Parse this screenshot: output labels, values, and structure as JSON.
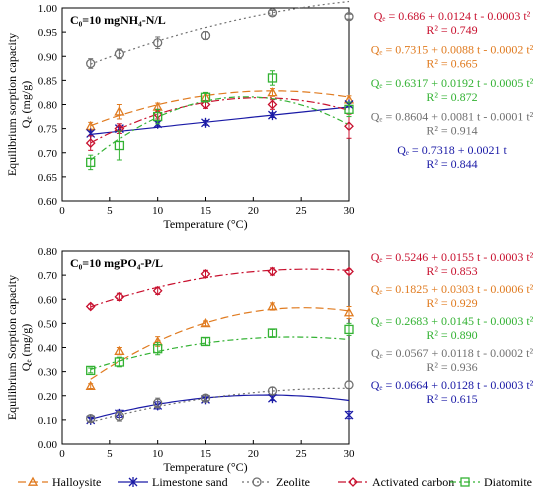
{
  "chart_data": [
    {
      "type": "line",
      "panel_label": "C₀=10 mgNH₄-N/L",
      "ylabel": "Equilibrium sorption capacity",
      "ylabel2": "Qₑ (mg/g)",
      "xlabel": "Temperature (°C)",
      "xlim": [
        0,
        30
      ],
      "ylim": [
        0.6,
        1.0
      ],
      "x_ticks": [
        "0",
        "5",
        "10",
        "15",
        "20",
        "25",
        "30"
      ],
      "y_ticks": [
        "0.60",
        "0.65",
        "0.70",
        "0.75",
        "0.80",
        "0.85",
        "0.90",
        "0.95",
        "1.00"
      ],
      "series": [
        {
          "key": "halloysite",
          "color": "#e07b20",
          "marker": "triangle",
          "dash": "8,4",
          "x": [
            3,
            6,
            10,
            15,
            22,
            30
          ],
          "values": [
            0.755,
            0.785,
            0.795,
            0.815,
            0.825,
            0.81
          ],
          "err": [
            0.008,
            0.015,
            0.008,
            0.01,
            0.008,
            0.008
          ],
          "fit": [
            0.7315,
            0.0088,
            -0.0002
          ]
        },
        {
          "key": "limestone",
          "color": "#1a1aa6",
          "marker": "star",
          "dash": "",
          "x": [
            3,
            6,
            10,
            15,
            22,
            30
          ],
          "values": [
            0.74,
            0.75,
            0.76,
            0.762,
            0.778,
            0.8
          ],
          "err": [
            0.005,
            0.005,
            0.005,
            0.005,
            0.005,
            0.005
          ],
          "fit": [
            0.7318,
            0.0021,
            0
          ]
        },
        {
          "key": "zeolite",
          "color": "#707070",
          "marker": "circle",
          "dash": "2,3",
          "x": [
            3,
            6,
            10,
            15,
            22,
            30
          ],
          "values": [
            0.885,
            0.905,
            0.928,
            0.943,
            0.99,
            0.982
          ],
          "err": [
            0.01,
            0.01,
            0.012,
            0.008,
            0.005,
            0.005
          ],
          "fit": [
            0.8604,
            0.0081,
            -0.0001
          ]
        },
        {
          "key": "activated",
          "color": "#c8102e",
          "marker": "diamond",
          "dash": "8,3,2,3",
          "x": [
            3,
            6,
            10,
            15,
            22,
            30
          ],
          "values": [
            0.72,
            0.75,
            0.78,
            0.8,
            0.8,
            0.755
          ],
          "err": [
            0.015,
            0.01,
            0.01,
            0.008,
            0.01,
            0.025
          ],
          "fit": [
            0.686,
            0.0124,
            -0.0003
          ]
        },
        {
          "key": "diatomite",
          "color": "#33b233",
          "marker": "square",
          "dash": "6,3,2,3",
          "x": [
            3,
            6,
            10,
            15,
            22,
            30
          ],
          "values": [
            0.68,
            0.715,
            0.775,
            0.815,
            0.855,
            0.79
          ],
          "err": [
            0.015,
            0.03,
            0.015,
            0.01,
            0.015,
            0.015
          ],
          "fit": [
            0.6317,
            0.0192,
            -0.0005
          ]
        }
      ],
      "equations": [
        {
          "color": "#c8102e",
          "line1": "Qₑ = 0.686 + 0.0124 t - 0.0003 t²",
          "line2": "R² = 0.749"
        },
        {
          "color": "#e07b20",
          "line1": "Qₑ = 0.7315 + 0.0088 t - 0.0002 t²",
          "line2": "R² = 0.665"
        },
        {
          "color": "#33b233",
          "line1": "Qₑ = 0.6317 + 0.0192 t - 0.0005 t²",
          "line2": "R² = 0.872"
        },
        {
          "color": "#707070",
          "line1": "Qₑ = 0.8604 + 0.0081 t - 0.0001 t²",
          "line2": "R² = 0.914"
        },
        {
          "color": "#1a1aa6",
          "line1": "Qₑ = 0.7318 + 0.0021 t",
          "line2": "R² = 0.844"
        }
      ]
    },
    {
      "type": "line",
      "panel_label": "C₀=10 mgPO₄-P/L",
      "ylabel": "Equilibrium Sorption capacity",
      "ylabel2": "Qₑ (mg/g)",
      "xlabel": "Temperature (°C)",
      "xlim": [
        0,
        30
      ],
      "ylim": [
        0.0,
        0.8
      ],
      "x_ticks": [
        "0",
        "5",
        "10",
        "15",
        "20",
        "25",
        "30"
      ],
      "y_ticks": [
        "0.00",
        "0.10",
        "0.20",
        "0.30",
        "0.40",
        "0.50",
        "0.60",
        "0.70",
        "0.80"
      ],
      "series": [
        {
          "key": "halloysite",
          "color": "#e07b20",
          "marker": "triangle",
          "dash": "8,4",
          "x": [
            3,
            6,
            10,
            15,
            22,
            30
          ],
          "values": [
            0.24,
            0.385,
            0.425,
            0.5,
            0.57,
            0.545
          ],
          "err": [
            0.01,
            0.015,
            0.02,
            0.01,
            0.015,
            0.025
          ],
          "fit": [
            0.1825,
            0.0303,
            -0.0006
          ]
        },
        {
          "key": "limestone",
          "color": "#1a1aa6",
          "marker": "star",
          "dash": "",
          "x": [
            3,
            6,
            10,
            15,
            22,
            30
          ],
          "values": [
            0.1,
            0.125,
            0.16,
            0.185,
            0.19,
            0.12
          ],
          "err": [
            0.01,
            0.015,
            0.015,
            0.01,
            0.01,
            0.015
          ],
          "fit": [
            0.0664,
            0.0128,
            -0.0003
          ]
        },
        {
          "key": "zeolite",
          "color": "#707070",
          "marker": "circle",
          "dash": "2,3",
          "x": [
            3,
            6,
            10,
            15,
            22,
            30
          ],
          "values": [
            0.105,
            0.115,
            0.17,
            0.19,
            0.22,
            0.245
          ],
          "err": [
            0.01,
            0.02,
            0.02,
            0.01,
            0.015,
            0.015
          ],
          "fit": [
            0.0567,
            0.0118,
            -0.0002
          ]
        },
        {
          "key": "activated",
          "color": "#c8102e",
          "marker": "diamond",
          "dash": "8,3,2,3",
          "x": [
            3,
            6,
            10,
            15,
            22,
            30
          ],
          "values": [
            0.57,
            0.61,
            0.635,
            0.705,
            0.715,
            0.715
          ],
          "err": [
            0.01,
            0.015,
            0.015,
            0.015,
            0.015,
            0.01
          ],
          "fit": [
            0.5246,
            0.0155,
            -0.0003
          ]
        },
        {
          "key": "diatomite",
          "color": "#33b233",
          "marker": "square",
          "dash": "6,3,2,3",
          "x": [
            3,
            6,
            10,
            15,
            22,
            30
          ],
          "values": [
            0.305,
            0.34,
            0.395,
            0.425,
            0.46,
            0.475
          ],
          "err": [
            0.01,
            0.02,
            0.025,
            0.015,
            0.015,
            0.025
          ],
          "fit": [
            0.2683,
            0.0145,
            -0.0003
          ]
        }
      ],
      "equations": [
        {
          "color": "#c8102e",
          "line1": "Qₑ = 0.5246 + 0.0155 t - 0.0003 t²",
          "line2": "R² = 0.853"
        },
        {
          "color": "#e07b20",
          "line1": "Qₑ = 0.1825 + 0.0303 t - 0.0006 t²",
          "line2": "R² = 0.929"
        },
        {
          "color": "#33b233",
          "line1": "Qₑ = 0.2683 + 0.0145 t - 0.0003 t²",
          "line2": "R² = 0.890"
        },
        {
          "color": "#707070",
          "line1": "Qₑ = 0.0567 + 0.0118 t - 0.0002 t²",
          "line2": "R² = 0.936"
        },
        {
          "color": "#1a1aa6",
          "line1": "Qₑ = 0.0664 + 0.0128 t - 0.0003 t²",
          "line2": "R² = 0.615"
        }
      ]
    }
  ],
  "legend": {
    "placement": "bottom",
    "items": [
      {
        "key": "halloysite",
        "label": "Halloysite",
        "color": "#e07b20",
        "marker": "triangle",
        "dash": "8,4"
      },
      {
        "key": "limestone",
        "label": "Limestone sand",
        "color": "#1a1aa6",
        "marker": "star",
        "dash": ""
      },
      {
        "key": "zeolite",
        "label": "Zeolite",
        "color": "#707070",
        "marker": "circle",
        "dash": "2,3"
      },
      {
        "key": "activated",
        "label": "Activated carbon",
        "color": "#c8102e",
        "marker": "diamond",
        "dash": "8,3,2,3"
      },
      {
        "key": "diatomite",
        "label": "Diatomite",
        "color": "#33b233",
        "marker": "square",
        "dash": "6,3,2,3"
      }
    ]
  }
}
